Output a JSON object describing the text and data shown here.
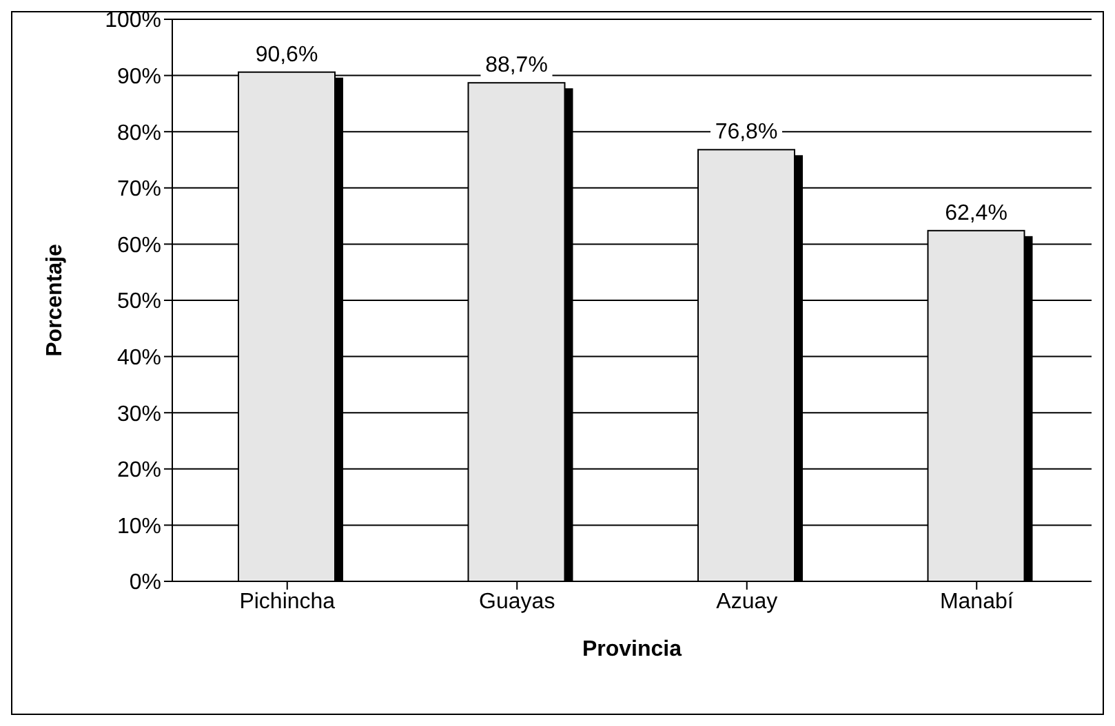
{
  "chart_data": {
    "type": "bar",
    "xlabel": "Provincia",
    "ylabel": "Porcentaje",
    "categories": [
      "Pichincha",
      "Guayas",
      "Azuay",
      "Manabí"
    ],
    "values": [
      90.6,
      88.7,
      76.8,
      62.4
    ],
    "value_labels": [
      "90,6%",
      "88,7%",
      "76,8%",
      "62,4%"
    ],
    "color": "#e6e6e6",
    "ylim": [
      0,
      100
    ],
    "yticks": [
      {
        "value": 0,
        "label": "0%"
      },
      {
        "value": 10,
        "label": "10%"
      },
      {
        "value": 20,
        "label": "20%"
      },
      {
        "value": 30,
        "label": "30%"
      },
      {
        "value": 40,
        "label": "40%"
      },
      {
        "value": 50,
        "label": "50%"
      },
      {
        "value": 60,
        "label": "60%"
      },
      {
        "value": 70,
        "label": "70%"
      },
      {
        "value": 80,
        "label": "80%"
      },
      {
        "value": 90,
        "label": "90%"
      },
      {
        "value": 100,
        "label": "100%"
      }
    ],
    "grid": "y",
    "legend": false
  }
}
